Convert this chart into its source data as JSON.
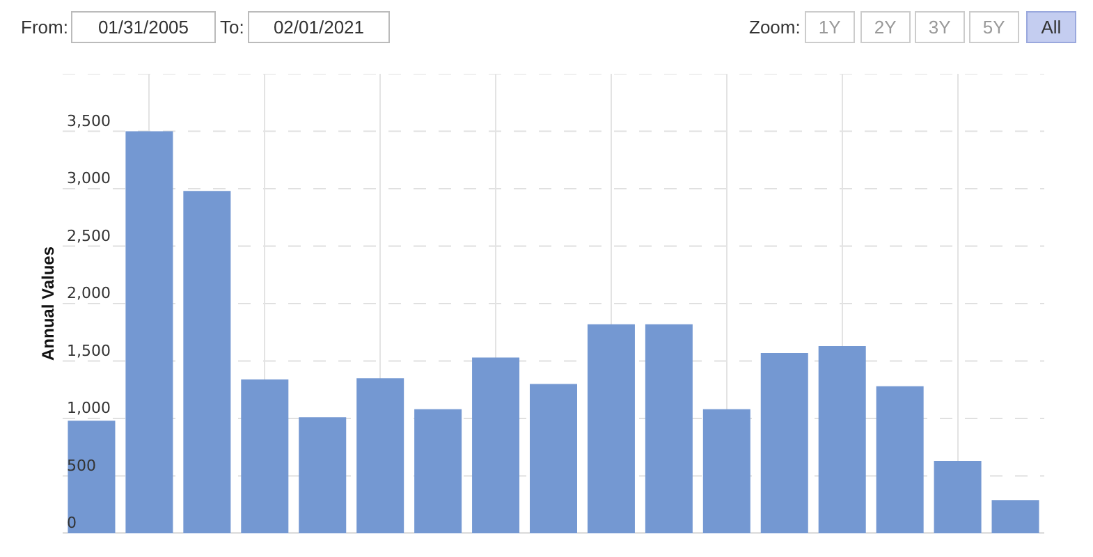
{
  "chart_data": {
    "type": "bar",
    "ylabel": "Annual Values",
    "categories": [
      null,
      null,
      null,
      null,
      null,
      null,
      null,
      null,
      null,
      null,
      null,
      null,
      null,
      null,
      null,
      null,
      null
    ],
    "values": [
      980,
      3500,
      2980,
      1340,
      1010,
      1350,
      1080,
      1530,
      1300,
      1820,
      1820,
      1080,
      1570,
      1630,
      1280,
      630,
      290
    ],
    "color": "#7498d2",
    "ylim": [
      0,
      4000
    ],
    "yticks": [
      0,
      500,
      {
        "value": 1000,
        "label": "1,000"
      },
      {
        "value": 1500,
        "label": "1,500"
      },
      {
        "value": 2000,
        "label": "2,000"
      },
      {
        "value": 2500,
        "label": "2,500"
      },
      {
        "value": 3000,
        "label": "3,000"
      },
      {
        "value": 3500,
        "label": "3,500"
      },
      {
        "value": 4000,
        "label": null
      }
    ],
    "grid": true,
    "tick_labels": "y",
    "annotations": [
      "From:",
      "01/31/2005",
      "To:",
      "02/01/2021",
      "Zoom:",
      "1Y",
      "2Y",
      "3Y",
      "5Y",
      "All"
    ]
  }
}
